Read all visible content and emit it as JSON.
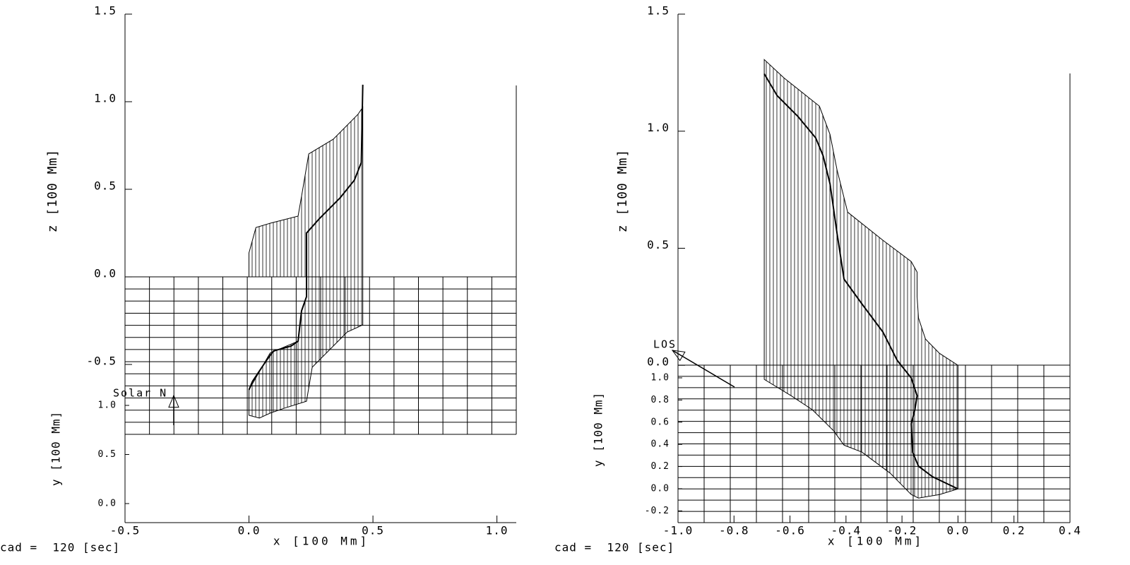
{
  "chart_data": [
    {
      "type": "line",
      "xlabel": "x [100 Mm]",
      "ylabel": "z [100 Mm]",
      "y2label": "y [100 Mm]",
      "annotation": "Solar N",
      "caption": "cad =  120 [sec]",
      "xlim": [
        -0.5,
        1.078
      ],
      "xticks": [
        -0.5,
        {
          "value": 0,
          "label": "0.0"
        },
        0.5,
        {
          "value": 1,
          "label": "1.0"
        }
      ],
      "ylim": [
        -1.403,
        1.5
      ],
      "yticks": [
        -0.5,
        {
          "value": 0,
          "label": "0.0"
        },
        0.5,
        {
          "value": 1,
          "label": "1.0"
        },
        1.5
      ],
      "y2lim": [
        -0.194,
        1.0
      ],
      "y2ticks": [
        {
          "value": 0,
          "label": "0.0"
        },
        0.5,
        {
          "value": 1,
          "label": "1.0"
        }
      ],
      "series": [
        {
          "color": "#000000",
          "width": 1,
          "hatch": true,
          "x": [
            0,
            0.028,
            0.085,
            0.198,
            0.212,
            0.241,
            0.34,
            0.439,
            0.459,
            0.459,
            0.396,
            0.34,
            0.255,
            0.232,
            0.142,
            0.085,
            0.042,
            0,
            0,
            0.085,
            0.198,
            0.212,
            0.232,
            0.232,
            0
          ],
          "values": [
            0.137,
            0.282,
            0.306,
            0.347,
            0.46,
            0.702,
            0.786,
            0.927,
            0.968,
            -0.274,
            -0.315,
            -0.395,
            -0.516,
            -0.71,
            -0.75,
            -0.778,
            -0.806,
            -0.79,
            -0.645,
            -0.435,
            -0.367,
            -0.194,
            -0.113,
            0,
            0
          ]
        },
        {
          "color": "#000000",
          "width": 2,
          "hatch": false,
          "x": [
            0,
            0.014,
            0.071,
            0.099,
            0.17,
            0.198,
            0.212,
            0.232,
            0.232,
            0.283,
            0.368,
            0.425,
            0.453,
            0.459
          ],
          "values": [
            -0.645,
            -0.597,
            -0.476,
            -0.423,
            -0.395,
            -0.367,
            -0.194,
            -0.113,
            0.25,
            0.331,
            0.452,
            0.552,
            0.653,
            1.097
          ]
        }
      ]
    },
    {
      "type": "line",
      "xlabel": "x [100 Mm]",
      "ylabel": "z [100 Mm]",
      "y2label": "y [100 Mm]",
      "annotation": "LOS",
      "caption": "cad =  120 [sec]",
      "xlim": [
        -1.0,
        0.4
      ],
      "xticks": [
        {
          "value": -1,
          "label": "-1.0"
        },
        -0.8,
        -0.6,
        -0.4,
        -0.2,
        {
          "value": 0,
          "label": "0.0"
        },
        0.2,
        0.4
      ],
      "ylim": [
        -0.672,
        1.5
      ],
      "yticks": [
        {
          "value": 0,
          "label": "0.0"
        },
        0.5,
        {
          "value": 1,
          "label": "1.0"
        },
        1.5
      ],
      "y2lim": [
        -0.306,
        1.0
      ],
      "y2ticks": [
        -0.2,
        {
          "value": 0,
          "label": "0.0"
        },
        0.2,
        0.4,
        0.6,
        0.8,
        {
          "value": 1,
          "label": "1.0"
        }
      ],
      "series": [
        {
          "color": "#000000",
          "width": 1,
          "hatch": true,
          "x": [
            -0.692,
            -0.621,
            -0.495,
            -0.457,
            -0.432,
            -0.394,
            -0.268,
            -0.167,
            -0.146,
            -0.146,
            -0.141,
            -0.116,
            -0.066,
            0,
            0,
            -0.066,
            -0.141,
            -0.167,
            -0.242,
            -0.343,
            -0.407,
            -0.444,
            -0.52,
            -0.596,
            -0.692
          ],
          "values": [
            1.306,
            1.227,
            1.107,
            0.986,
            0.835,
            0.654,
            0.534,
            0.443,
            0.398,
            0.293,
            0.202,
            0.112,
            0.051,
            0,
            -0.528,
            -0.552,
            -0.567,
            -0.552,
            -0.461,
            -0.371,
            -0.341,
            -0.28,
            -0.19,
            -0.13,
            -0.06
          ]
        },
        {
          "color": "#000000",
          "width": 2,
          "hatch": false,
          "x": [
            -0.692,
            -0.646,
            -0.571,
            -0.508,
            -0.482,
            -0.457,
            -0.432,
            -0.407,
            -0.343,
            -0.268,
            -0.217,
            -0.167,
            -0.146,
            -0.154,
            -0.167,
            -0.162,
            -0.141,
            -0.091,
            0
          ],
          "values": [
            1.245,
            1.152,
            1.062,
            0.971,
            0.896,
            0.775,
            0.564,
            0.368,
            0.262,
            0.142,
            0.021,
            -0.054,
            -0.13,
            -0.19,
            -0.25,
            -0.371,
            -0.431,
            -0.476,
            -0.528
          ]
        }
      ]
    }
  ]
}
